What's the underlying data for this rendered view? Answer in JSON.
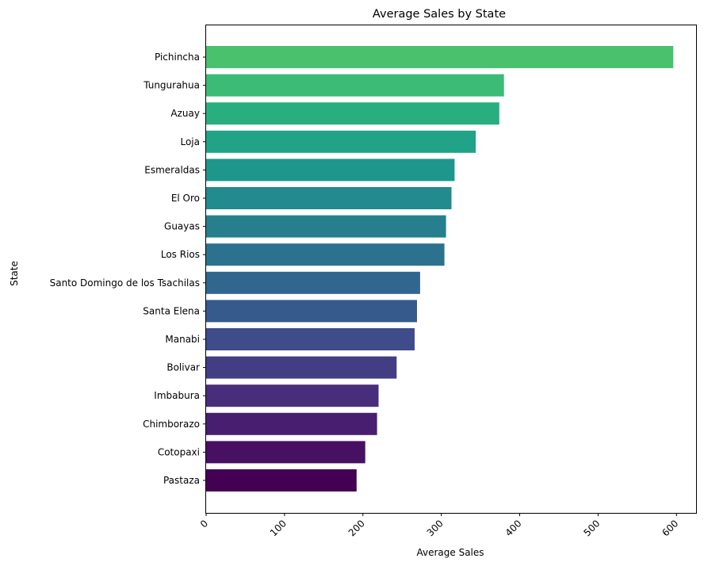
{
  "chart_data": {
    "type": "bar",
    "orientation": "horizontal",
    "title": "Average Sales by State",
    "xlabel": "Average Sales",
    "ylabel": "State",
    "xlim": [
      0,
      625
    ],
    "xticks": [
      "0",
      "100",
      "200",
      "300",
      "400",
      "500",
      "600"
    ],
    "categories": [
      "Pichincha",
      "Tungurahua",
      "Azuay",
      "Loja",
      "Esmeraldas",
      "El Oro",
      "Guayas",
      "Los Rios",
      "Santo Domingo de los Tsachilas",
      "Santa Elena",
      "Manabi",
      "Bolivar",
      "Imbabura",
      "Chimborazo",
      "Cotopaxi",
      "Pastaza"
    ],
    "values": [
      596,
      380,
      374,
      344,
      317,
      313,
      306,
      304,
      273,
      269,
      266,
      243,
      220,
      218,
      203,
      192
    ],
    "colors": [
      "#4ac16d",
      "#3bbb75",
      "#29af7f",
      "#20a386",
      "#1f968b",
      "#228b8d",
      "#277f8e",
      "#2c728e",
      "#31668e",
      "#375a8c",
      "#3e4c8a",
      "#433d84",
      "#482d7b",
      "#481f70",
      "#471063",
      "#440154"
    ],
    "grid": false,
    "legend": "none"
  }
}
